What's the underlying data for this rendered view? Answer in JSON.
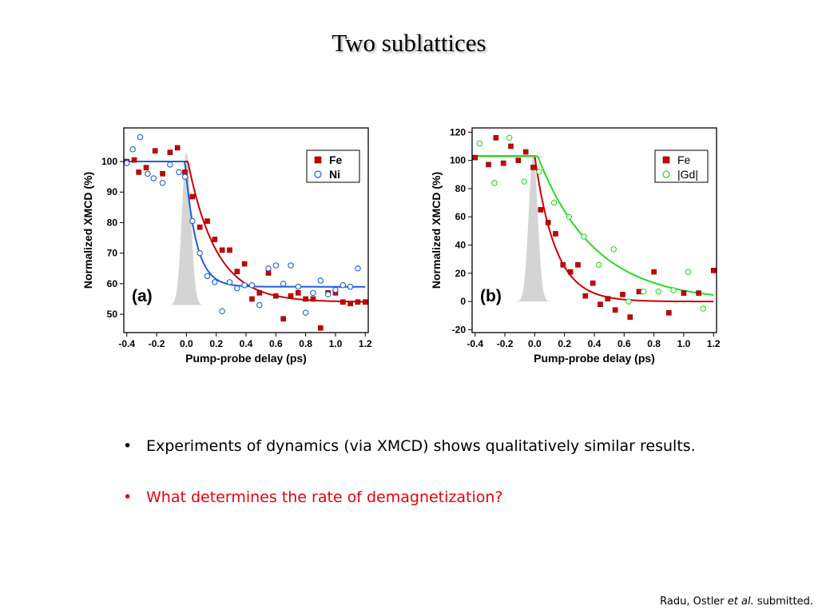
{
  "slide": {
    "title": "Two sublattices",
    "bullets": [
      {
        "marker": "•",
        "text": "Experiments of dynamics (via XMCD) shows qualitatively similar results."
      },
      {
        "marker": "•",
        "text": "What determines the rate of demagnetization?"
      }
    ],
    "citation": {
      "before": "Radu, Ostler ",
      "italic": "et al.",
      "after": " submitted."
    }
  },
  "colors": {
    "fe": "#cc0000",
    "ni": "#1f5fd6",
    "gd": "#22dd22",
    "pump": "#d4d4d4",
    "bullet_red": "#e8000b"
  },
  "chart_data": [
    {
      "type": "scatter",
      "panel_label": "(a)",
      "xlabel": "Pump-probe delay (ps)",
      "ylabel": "Normalized XMCD (%)",
      "xlim": [
        -0.42,
        1.22
      ],
      "ylim": [
        44,
        111
      ],
      "xticks": [
        -0.4,
        -0.2,
        0.0,
        0.2,
        0.4,
        0.6,
        0.8,
        1.0,
        1.2
      ],
      "xtick_labels": [
        "-0.4",
        "-0.2",
        "0.0",
        "0.2",
        "0.4",
        "0.6",
        "0.8",
        "1.0",
        "1.2"
      ],
      "yticks": [
        50,
        60,
        70,
        80,
        90,
        100
      ],
      "ytick_labels": [
        "50",
        "60",
        "70",
        "80",
        "90",
        "100"
      ],
      "legend_position": "top-right",
      "pump_pulse": {
        "center": 0.0,
        "sigma": 0.03,
        "baseline": 53,
        "peak": 103
      },
      "series": [
        {
          "name": "Fe",
          "marker": "filled-square",
          "color": "#cc0000",
          "x": [
            -0.4,
            -0.35,
            -0.32,
            -0.27,
            -0.21,
            -0.16,
            -0.11,
            -0.06,
            -0.01,
            0.04,
            0.09,
            0.14,
            0.19,
            0.24,
            0.29,
            0.34,
            0.39,
            0.44,
            0.49,
            0.55,
            0.6,
            0.65,
            0.7,
            0.75,
            0.8,
            0.85,
            0.9,
            0.95,
            1.0,
            1.05,
            1.1,
            1.15,
            1.2
          ],
          "y": [
            100,
            100.5,
            96.5,
            98,
            103.5,
            96,
            103,
            104.5,
            96.5,
            88.5,
            78.5,
            80.5,
            74.5,
            71,
            71,
            64,
            66.5,
            55,
            57,
            63.5,
            56,
            48.5,
            56,
            57,
            55,
            55,
            45.5,
            57,
            57,
            54,
            53.5,
            54,
            54
          ]
        },
        {
          "name": "Ni",
          "marker": "open-circle",
          "color": "#1f5fd6",
          "x": [
            -0.4,
            -0.36,
            -0.31,
            -0.26,
            -0.22,
            -0.16,
            -0.11,
            -0.05,
            -0.01,
            0.04,
            0.09,
            0.14,
            0.19,
            0.24,
            0.29,
            0.34,
            0.39,
            0.44,
            0.49,
            0.55,
            0.6,
            0.65,
            0.7,
            0.75,
            0.8,
            0.85,
            0.9,
            0.95,
            1.0,
            1.05,
            1.1,
            1.15
          ],
          "y": [
            99.5,
            104,
            108,
            96,
            94.5,
            93,
            99,
            96.5,
            95,
            80.5,
            70,
            62.5,
            60.5,
            51,
            60.5,
            58.5,
            59.5,
            59.5,
            53,
            65,
            66,
            60,
            66,
            59,
            50.5,
            57,
            61,
            56.5,
            58,
            59.5,
            59,
            65
          ]
        }
      ],
      "fits": [
        {
          "series": "Fe",
          "color": "#cc0000",
          "baseline": 100,
          "final": 54,
          "t0": 0.01,
          "tau": 0.19
        },
        {
          "series": "Ni",
          "color": "#1f5fd6",
          "baseline": 100,
          "final": 59,
          "t0": -0.01,
          "tau": 0.075
        }
      ]
    },
    {
      "type": "scatter",
      "panel_label": "(b)",
      "xlabel": "Pump-probe delay (ps)",
      "ylabel": "Normalized XMCD (%)",
      "xlim": [
        -0.42,
        1.22
      ],
      "ylim": [
        -22,
        123
      ],
      "xticks": [
        -0.4,
        -0.2,
        0.0,
        0.2,
        0.4,
        0.6,
        0.8,
        1.0,
        1.2
      ],
      "xtick_labels": [
        "-0.4",
        "-0.2",
        "0.0",
        "0.2",
        "0.4",
        "0.6",
        "0.8",
        "1.0",
        "1.2"
      ],
      "yticks": [
        -20,
        0,
        20,
        40,
        60,
        80,
        100,
        120
      ],
      "ytick_labels": [
        "-20",
        "0",
        "20",
        "40",
        "60",
        "80",
        "100",
        "120"
      ],
      "legend_position": "top-right",
      "pump_pulse": {
        "center": -0.01,
        "sigma": 0.03,
        "baseline": 0,
        "peak": 104
      },
      "series": [
        {
          "name": "Fe",
          "marker": "filled-square",
          "color": "#cc0000",
          "x": [
            -0.4,
            -0.31,
            -0.26,
            -0.21,
            -0.16,
            -0.11,
            -0.06,
            -0.01,
            0.04,
            0.09,
            0.14,
            0.19,
            0.24,
            0.29,
            0.34,
            0.39,
            0.44,
            0.49,
            0.54,
            0.59,
            0.64,
            0.7,
            0.8,
            0.9,
            1.0,
            1.1,
            1.2
          ],
          "y": [
            102,
            97,
            116,
            98,
            110,
            100,
            106,
            95,
            65,
            56,
            48,
            26,
            21,
            26,
            4,
            13,
            -2,
            2,
            -6,
            5,
            -11,
            7,
            21,
            -8,
            6,
            6,
            22
          ]
        },
        {
          "name": "|Gd|",
          "marker": "open-circle",
          "color": "#22dd22",
          "x": [
            -0.37,
            -0.27,
            -0.17,
            -0.07,
            0.03,
            0.13,
            0.23,
            0.33,
            0.43,
            0.53,
            0.63,
            0.73,
            0.83,
            0.93,
            1.03,
            1.13
          ],
          "y": [
            112,
            84,
            116,
            85,
            92,
            70,
            60,
            46,
            26,
            37,
            0,
            7,
            7,
            8,
            21,
            -5
          ]
        }
      ],
      "fits": [
        {
          "series": "Fe",
          "color": "#cc0000",
          "baseline": 103,
          "final": 0,
          "t0": 0.0,
          "tau": 0.14
        },
        {
          "series": "|Gd|",
          "color": "#22dd22",
          "baseline": 103,
          "final": 0,
          "t0": 0.02,
          "tau": 0.38
        }
      ]
    }
  ]
}
